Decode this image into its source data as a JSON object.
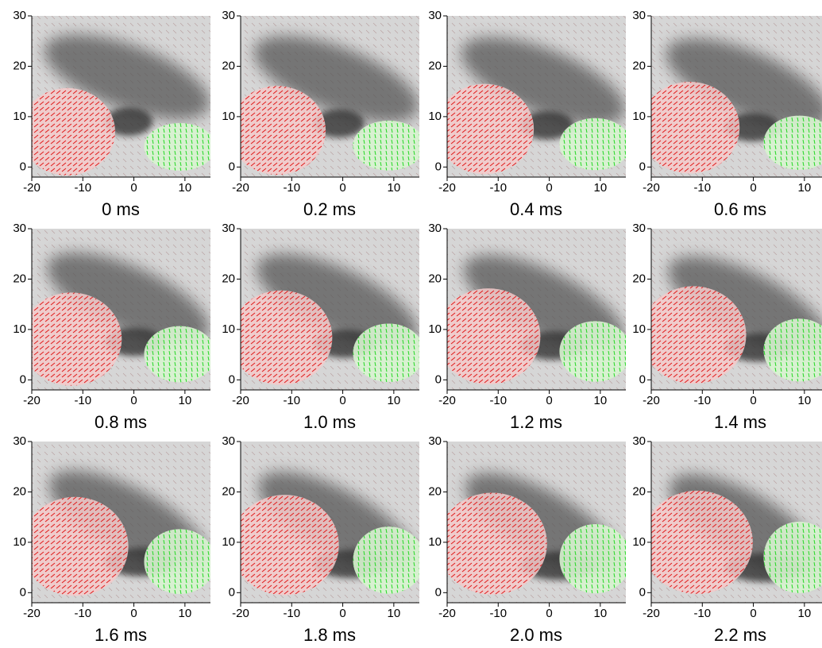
{
  "axes": {
    "xlim": [
      -20,
      15
    ],
    "ylim": [
      -2,
      30
    ],
    "xticks": [
      -20,
      -10,
      0,
      10
    ],
    "yticks": [
      0,
      10,
      20,
      30
    ]
  },
  "panels": [
    {
      "label": "0 ms"
    },
    {
      "label": "0.2 ms"
    },
    {
      "label": "0.4 ms"
    },
    {
      "label": "0.6 ms"
    },
    {
      "label": "0.8 ms"
    },
    {
      "label": "1.0 ms"
    },
    {
      "label": "1.2 ms"
    },
    {
      "label": "1.4 ms"
    },
    {
      "label": "1.6 ms"
    },
    {
      "label": "1.8 ms"
    },
    {
      "label": "2.0 ms"
    },
    {
      "label": "2.2 ms"
    }
  ]
}
